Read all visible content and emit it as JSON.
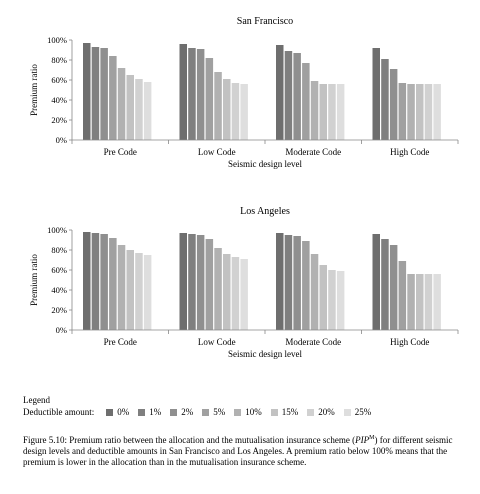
{
  "legend": {
    "title": "Legend",
    "label": "Deductible amount:",
    "items": [
      {
        "name": "0%",
        "color": "#6e6e6e"
      },
      {
        "name": "1%",
        "color": "#7f7f7f"
      },
      {
        "name": "2%",
        "color": "#8f8f8f"
      },
      {
        "name": "5%",
        "color": "#a0a0a0"
      },
      {
        "name": "10%",
        "color": "#b1b1b1"
      },
      {
        "name": "15%",
        "color": "#c2c2c2"
      },
      {
        "name": "20%",
        "color": "#d1d1d1"
      },
      {
        "name": "25%",
        "color": "#dedede"
      }
    ]
  },
  "caption": {
    "prefix": "Figure 5.10: Premium ratio between the allocation and the mutualisation insurance scheme (",
    "pip": "PIP",
    "sup": "M",
    "suffix": ") for different seismic design levels and deductible amounts in San Francisco and Los Angeles. A premium ratio below 100% means that the premium is lower in the allocation than in the mutualisation insurance scheme."
  },
  "chart_data": [
    {
      "type": "bar",
      "title": "San Francisco",
      "xlabel": "Seismic design level",
      "ylabel": "Premium ratio",
      "ylim": [
        0,
        100
      ],
      "yticks": [
        "0%",
        "20%",
        "40%",
        "60%",
        "80%",
        "100%"
      ],
      "categories": [
        "Pre Code",
        "Low Code",
        "Moderate Code",
        "High Code"
      ],
      "grid": false,
      "series": [
        {
          "name": "0%",
          "values": [
            97,
            96,
            95,
            92
          ]
        },
        {
          "name": "1%",
          "values": [
            93,
            92,
            89,
            81
          ]
        },
        {
          "name": "2%",
          "values": [
            92,
            91,
            87,
            71
          ]
        },
        {
          "name": "5%",
          "values": [
            84,
            82,
            77,
            57
          ]
        },
        {
          "name": "10%",
          "values": [
            72,
            68,
            59,
            56
          ]
        },
        {
          "name": "15%",
          "values": [
            65,
            61,
            56,
            56
          ]
        },
        {
          "name": "20%",
          "values": [
            61,
            57,
            56,
            56
          ]
        },
        {
          "name": "25%",
          "values": [
            58,
            56,
            56,
            56
          ]
        }
      ]
    },
    {
      "type": "bar",
      "title": "Los Angeles",
      "xlabel": "Seismic design level",
      "ylabel": "Premium ratio",
      "ylim": [
        0,
        100
      ],
      "yticks": [
        "0%",
        "20%",
        "40%",
        "60%",
        "80%",
        "100%"
      ],
      "categories": [
        "Pre Code",
        "Low Code",
        "Moderate Code",
        "High Code"
      ],
      "grid": false,
      "series": [
        {
          "name": "0%",
          "values": [
            98,
            97,
            97,
            96
          ]
        },
        {
          "name": "1%",
          "values": [
            97,
            96,
            95,
            91
          ]
        },
        {
          "name": "2%",
          "values": [
            96,
            95,
            94,
            85
          ]
        },
        {
          "name": "5%",
          "values": [
            92,
            91,
            89,
            69
          ]
        },
        {
          "name": "10%",
          "values": [
            85,
            82,
            76,
            56
          ]
        },
        {
          "name": "15%",
          "values": [
            80,
            76,
            65,
            56
          ]
        },
        {
          "name": "20%",
          "values": [
            77,
            73,
            60,
            56
          ]
        },
        {
          "name": "25%",
          "values": [
            75,
            71,
            59,
            56
          ]
        }
      ]
    }
  ]
}
